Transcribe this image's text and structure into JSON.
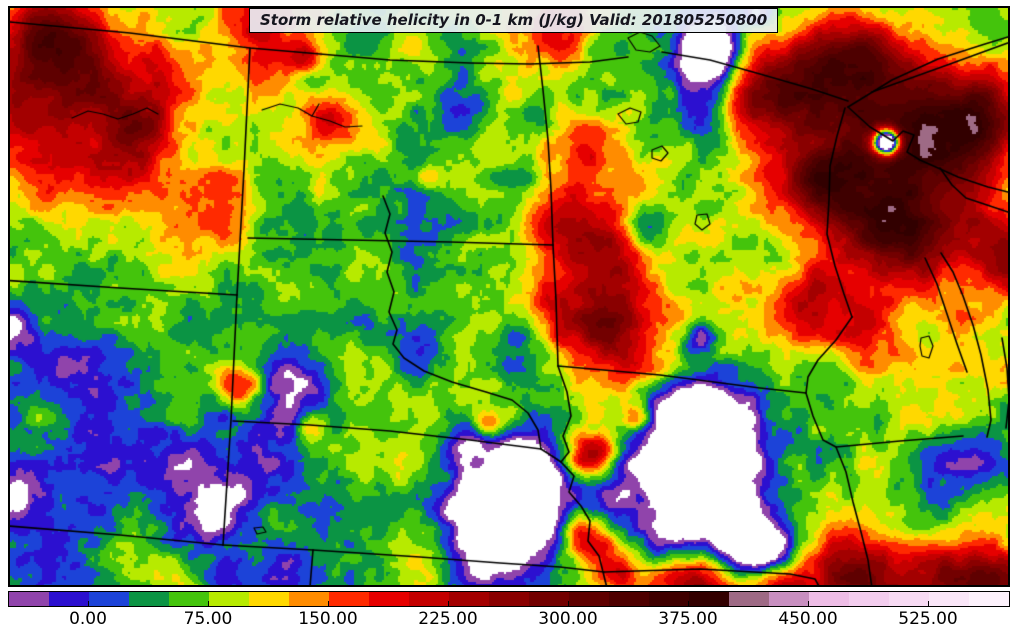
{
  "title": {
    "text": "Storm relative helicity in 0-1 km (J/kg) Valid: 201805250800"
  },
  "colorbar": {
    "tick_labels": [
      "0.00",
      "75.00",
      "150.00",
      "225.00",
      "300.00",
      "375.00",
      "450.00",
      "525.00"
    ],
    "tick_values": [
      0,
      75,
      150,
      225,
      300,
      375,
      450,
      525
    ],
    "value_min": -50,
    "value_max": 575,
    "level_step": 25,
    "below_color": "#ffffff",
    "above_color": "#ffffff",
    "colors": [
      "#9044ab",
      "#2c10d0",
      "#1c43d8",
      "#0b9444",
      "#44c40c",
      "#b7ea00",
      "#ffd800",
      "#ff8c00",
      "#ff2a00",
      "#e60000",
      "#c40000",
      "#a30000",
      "#8a0000",
      "#730000",
      "#5f0000",
      "#4e0000",
      "#3f0000",
      "#320000",
      "#9e6a85",
      "#c88fc0",
      "#eebde6",
      "#f3cdee",
      "#f7daf3",
      "#fae6f8",
      "#fdf2fc"
    ]
  },
  "chart_data": {
    "type": "heatmap",
    "title": "Storm relative helicity in 0-1 km (J/kg) Valid: 201805250800",
    "units": "J/kg",
    "valid_time": "201805250800",
    "levels": [
      -50,
      -25,
      0,
      25,
      50,
      75,
      100,
      125,
      150,
      175,
      200,
      225,
      250,
      275,
      300,
      325,
      350,
      375,
      400,
      425,
      450,
      475,
      500,
      525,
      550,
      575
    ],
    "palette": [
      "#9044ab",
      "#2c10d0",
      "#1c43d8",
      "#0b9444",
      "#44c40c",
      "#b7ea00",
      "#ffd800",
      "#ff8c00",
      "#ff2a00",
      "#e60000",
      "#c40000",
      "#a30000",
      "#8a0000",
      "#730000",
      "#5f0000",
      "#4e0000",
      "#3f0000",
      "#320000",
      "#9e6a85",
      "#c88fc0",
      "#eebde6",
      "#f3cdee",
      "#f7daf3",
      "#fae6f8",
      "#fdf2fc"
    ],
    "offscale_color": "#ffffff",
    "field": {
      "base": 72,
      "noise": [
        {
          "scale": 46,
          "amp": 40,
          "seed": 3
        },
        {
          "scale": 16,
          "amp": 24,
          "seed": 11
        },
        {
          "scale": 6.5,
          "amp": 11,
          "seed": 27
        }
      ],
      "features": [
        [
          55,
          42,
          55,
          235
        ],
        [
          25,
          120,
          55,
          120
        ],
        [
          132,
          122,
          70,
          150
        ],
        [
          135,
          112,
          30,
          60
        ],
        [
          95,
          168,
          45,
          60
        ],
        [
          205,
          215,
          55,
          55
        ],
        [
          255,
          32,
          45,
          135
        ],
        [
          305,
          55,
          15,
          100
        ],
        [
          160,
          60,
          40,
          60
        ],
        [
          332,
          118,
          26,
          115
        ],
        [
          428,
          178,
          12,
          95
        ],
        [
          560,
          28,
          40,
          115
        ],
        [
          545,
          100,
          30,
          45
        ],
        [
          552,
          205,
          55,
          48
        ],
        [
          545,
          295,
          45,
          42
        ],
        [
          588,
          165,
          42,
          85
        ],
        [
          600,
          228,
          40,
          95
        ],
        [
          605,
          262,
          45,
          110
        ],
        [
          612,
          330,
          52,
          205
        ],
        [
          592,
          455,
          22,
          195
        ],
        [
          585,
          533,
          30,
          175
        ],
        [
          614,
          569,
          26,
          130
        ],
        [
          490,
          425,
          14,
          130
        ],
        [
          240,
          385,
          22,
          165
        ],
        [
          310,
          428,
          12,
          85
        ],
        [
          637,
          418,
          14,
          120
        ],
        [
          770,
          92,
          58,
          245
        ],
        [
          850,
          72,
          52,
          240
        ],
        [
          918,
          142,
          65,
          265
        ],
        [
          828,
          180,
          52,
          235
        ],
        [
          898,
          230,
          52,
          215
        ],
        [
          988,
          118,
          48,
          195
        ],
        [
          1005,
          250,
          40,
          140
        ],
        [
          808,
          306,
          42,
          155
        ],
        [
          862,
          330,
          35,
          90
        ],
        [
          945,
          280,
          110,
          40
        ],
        [
          700,
          581,
          38,
          210
        ],
        [
          780,
          585,
          30,
          195
        ],
        [
          860,
          582,
          45,
          215
        ],
        [
          950,
          580,
          50,
          200
        ],
        [
          1005,
          582,
          30,
          170
        ],
        [
          505,
          505,
          58,
          -200
        ],
        [
          495,
          555,
          38,
          -160
        ],
        [
          520,
          458,
          28,
          -130
        ],
        [
          468,
          442,
          22,
          -110
        ],
        [
          710,
          462,
          65,
          -215
        ],
        [
          733,
          540,
          42,
          -170
        ],
        [
          695,
          412,
          32,
          -140
        ],
        [
          764,
          555,
          26,
          -140
        ],
        [
          662,
          470,
          30,
          -95
        ],
        [
          672,
          530,
          25,
          -95
        ],
        [
          548,
          520,
          22,
          -85
        ],
        [
          543,
          470,
          18,
          -80
        ],
        [
          698,
          337,
          17,
          -130
        ],
        [
          712,
          52,
          30,
          -240
        ],
        [
          712,
          52,
          55,
          -70
        ],
        [
          757,
          13,
          13,
          -110
        ],
        [
          887,
          142,
          14,
          -520
        ],
        [
          458,
          100,
          32,
          -90
        ],
        [
          535,
          118,
          20,
          -70
        ],
        [
          452,
          215,
          28,
          -80
        ],
        [
          420,
          330,
          32,
          -70
        ],
        [
          520,
          180,
          22,
          -55
        ],
        [
          520,
          338,
          26,
          -70
        ],
        [
          60,
          350,
          85,
          -80
        ],
        [
          140,
          470,
          75,
          -85
        ],
        [
          60,
          558,
          55,
          -65
        ],
        [
          280,
          478,
          65,
          -65
        ],
        [
          350,
          555,
          45,
          -55
        ],
        [
          300,
          385,
          42,
          -120
        ],
        [
          210,
          510,
          40,
          -120
        ],
        [
          20,
          490,
          30,
          -110
        ],
        [
          225,
          582,
          25,
          -100
        ],
        [
          12,
          330,
          16,
          -95
        ],
        [
          280,
          578,
          32,
          -105
        ],
        [
          610,
          500,
          45,
          -90
        ],
        [
          705,
          120,
          38,
          -105
        ],
        [
          645,
          222,
          28,
          -55
        ],
        [
          965,
          468,
          42,
          -75
        ],
        [
          935,
          518,
          32,
          -65
        ]
      ]
    },
    "borders": [
      [
        [
          10,
          22
        ],
        [
          130,
          33
        ],
        [
          250,
          48
        ],
        [
          390,
          60
        ],
        [
          470,
          63
        ],
        [
          530,
          64
        ],
        [
          590,
          62
        ],
        [
          628,
          57
        ]
      ],
      [
        [
          662,
          52
        ],
        [
          710,
          60
        ],
        [
          760,
          74
        ],
        [
          812,
          89
        ],
        [
          848,
          101
        ]
      ],
      [
        [
          872,
          92
        ],
        [
          950,
          64
        ],
        [
          1016,
          40
        ]
      ],
      [
        [
          250,
          48
        ],
        [
          244,
          170
        ],
        [
          237,
          295
        ]
      ],
      [
        [
          0,
          280
        ],
        [
          120,
          288
        ],
        [
          237,
          295
        ]
      ],
      [
        [
          237,
          295
        ],
        [
          231,
          420
        ],
        [
          223,
          545
        ]
      ],
      [
        [
          8,
          526
        ],
        [
          120,
          535
        ],
        [
          223,
          545
        ]
      ],
      [
        [
          223,
          545
        ],
        [
          313,
          550
        ]
      ],
      [
        [
          313,
          550
        ],
        [
          310,
          587
        ]
      ],
      [
        [
          248,
          238
        ],
        [
          350,
          240
        ],
        [
          450,
          242
        ],
        [
          553,
          245
        ]
      ],
      [
        [
          538,
          46
        ],
        [
          543,
          90
        ],
        [
          548,
          140
        ],
        [
          551,
          190
        ],
        [
          553,
          245
        ]
      ],
      [
        [
          553,
          245
        ],
        [
          556,
          300
        ],
        [
          558,
          366
        ]
      ],
      [
        [
          558,
          366
        ],
        [
          660,
          375
        ],
        [
          760,
          388
        ],
        [
          806,
          393
        ]
      ],
      [
        [
          233,
          421
        ],
        [
          310,
          425
        ],
        [
          390,
          431
        ],
        [
          470,
          440
        ],
        [
          541,
          449
        ]
      ],
      [
        [
          558,
          366
        ],
        [
          567,
          392
        ],
        [
          571,
          416
        ],
        [
          563,
          436
        ],
        [
          569,
          452
        ],
        [
          561,
          462
        ]
      ],
      [
        [
          541,
          449
        ],
        [
          552,
          456
        ],
        [
          561,
          462
        ],
        [
          574,
          476
        ],
        [
          569,
          492
        ],
        [
          581,
          506
        ],
        [
          590,
          521
        ],
        [
          588,
          541
        ],
        [
          599,
          556
        ],
        [
          604,
          576
        ],
        [
          607,
          588
        ]
      ],
      [
        [
          313,
          550
        ],
        [
          420,
          557
        ],
        [
          500,
          563
        ],
        [
          560,
          567
        ],
        [
          604,
          572
        ]
      ],
      [
        [
          604,
          572
        ],
        [
          700,
          569
        ],
        [
          790,
          574
        ],
        [
          815,
          579
        ],
        [
          820,
          588
        ]
      ],
      [
        [
          845,
          108
        ],
        [
          837,
          136
        ],
        [
          830,
          166
        ],
        [
          829,
          200
        ],
        [
          827,
          234
        ],
        [
          835,
          266
        ],
        [
          844,
          294
        ],
        [
          852,
          317
        ]
      ],
      [
        [
          852,
          317
        ],
        [
          836,
          340
        ],
        [
          818,
          360
        ],
        [
          808,
          377
        ],
        [
          806,
          393
        ]
      ],
      [
        [
          806,
          393
        ],
        [
          813,
          416
        ],
        [
          823,
          440
        ],
        [
          836,
          447
        ],
        [
          846,
          472
        ],
        [
          853,
          502
        ],
        [
          861,
          532
        ],
        [
          868,
          560
        ],
        [
          872,
          588
        ]
      ],
      [
        [
          836,
          447
        ],
        [
          900,
          441
        ],
        [
          963,
          436
        ]
      ],
      [
        [
          848,
          107
        ],
        [
          892,
          80
        ],
        [
          938,
          59
        ],
        [
          985,
          44
        ],
        [
          1008,
          37
        ]
      ],
      [
        [
          848,
          107
        ],
        [
          870,
          127
        ],
        [
          893,
          141
        ],
        [
          903,
          131
        ],
        [
          914,
          135
        ],
        [
          907,
          152
        ],
        [
          920,
          160
        ],
        [
          938,
          168
        ],
        [
          958,
          177
        ],
        [
          988,
          187
        ],
        [
          1008,
          192
        ]
      ],
      [
        [
          940,
          168
        ],
        [
          952,
          185
        ],
        [
          966,
          198
        ],
        [
          990,
          206
        ],
        [
          1008,
          212
        ]
      ],
      [
        [
          925,
          258
        ],
        [
          937,
          284
        ],
        [
          947,
          314
        ],
        [
          957,
          344
        ],
        [
          967,
          372
        ]
      ],
      [
        [
          941,
          253
        ],
        [
          953,
          272
        ],
        [
          963,
          296
        ],
        [
          973,
          325
        ],
        [
          981,
          355
        ],
        [
          988,
          390
        ],
        [
          991,
          420
        ],
        [
          987,
          437
        ]
      ],
      [
        [
          1002,
          338
        ],
        [
          1007,
          368
        ],
        [
          1009,
          400
        ],
        [
          1006,
          428
        ]
      ],
      [
        [
          383,
          196
        ],
        [
          390,
          214
        ],
        [
          385,
          233
        ],
        [
          392,
          252
        ],
        [
          387,
          272
        ],
        [
          394,
          292
        ],
        [
          389,
          312
        ],
        [
          397,
          330
        ],
        [
          393,
          344
        ],
        [
          404,
          358
        ],
        [
          424,
          371
        ],
        [
          452,
          382
        ],
        [
          486,
          392
        ],
        [
          512,
          400
        ],
        [
          528,
          413
        ],
        [
          538,
          430
        ],
        [
          541,
          449
        ]
      ]
    ],
    "lakes": [
      [
        [
          72,
          118
        ],
        [
          88,
          111
        ],
        [
          103,
          114
        ],
        [
          118,
          119
        ],
        [
          133,
          114
        ],
        [
          147,
          108
        ],
        [
          158,
          114
        ]
      ],
      [
        [
          262,
          110
        ],
        [
          280,
          104
        ],
        [
          298,
          108
        ],
        [
          312,
          116
        ],
        [
          330,
          121
        ],
        [
          345,
          127
        ],
        [
          362,
          126
        ]
      ],
      [
        [
          312,
          116
        ],
        [
          319,
          104
        ]
      ],
      [
        [
          618,
          114
        ],
        [
          630,
          108
        ],
        [
          641,
          112
        ],
        [
          638,
          122
        ],
        [
          626,
          124
        ],
        [
          618,
          114
        ]
      ],
      [
        [
          652,
          150
        ],
        [
          662,
          146
        ],
        [
          668,
          153
        ],
        [
          661,
          161
        ],
        [
          652,
          158
        ],
        [
          652,
          150
        ]
      ],
      [
        [
          697,
          215
        ],
        [
          707,
          214
        ],
        [
          710,
          224
        ],
        [
          702,
          230
        ],
        [
          695,
          224
        ],
        [
          697,
          215
        ]
      ],
      [
        [
          628,
          38
        ],
        [
          640,
          32
        ],
        [
          652,
          36
        ],
        [
          660,
          46
        ],
        [
          650,
          52
        ],
        [
          636,
          50
        ],
        [
          628,
          38
        ]
      ],
      [
        [
          921,
          338
        ],
        [
          929,
          336
        ],
        [
          933,
          346
        ],
        [
          929,
          358
        ],
        [
          922,
          356
        ],
        [
          920,
          346
        ],
        [
          921,
          338
        ]
      ],
      [
        [
          254,
          528
        ],
        [
          263,
          527
        ],
        [
          266,
          532
        ],
        [
          257,
          534
        ],
        [
          254,
          528
        ]
      ]
    ]
  }
}
